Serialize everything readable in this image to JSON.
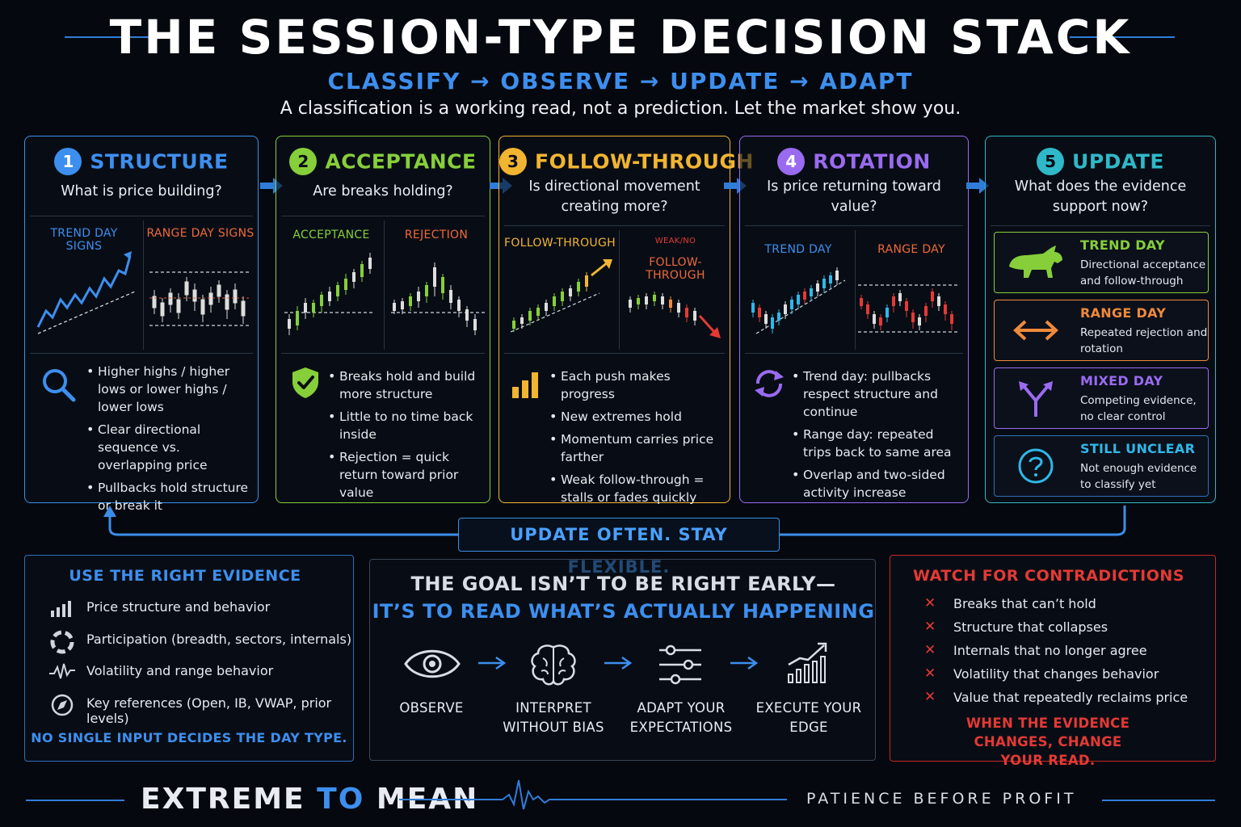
{
  "header": {
    "title": "THE SESSION-TYPE DECISION STACK",
    "subtitle": "CLASSIFY → OBSERVE → UPDATE → ADAPT",
    "tagline": "A classification is a working read, not a prediction. Let the market show you."
  },
  "colors": {
    "blue": "#3d8fef",
    "green": "#86cf3a",
    "yellow": "#f2b531",
    "purple": "#9a6bf0",
    "teal": "#2fb8c8",
    "orange": "#f08a3a",
    "red": "#e53935"
  },
  "steps": [
    {
      "num": "1",
      "title": "STRUCTURE",
      "question": "What is price building?",
      "left_label": "TREND DAY SIGNS",
      "right_label": "RANGE DAY SIGNS",
      "icon": "magnifier-icon",
      "bullets": [
        "Higher highs / higher lows or lower highs / lower lows",
        "Clear directional sequence vs. overlapping price",
        "Pullbacks hold structure or break it"
      ]
    },
    {
      "num": "2",
      "title": "ACCEPTANCE",
      "question": "Are breaks holding?",
      "left_label": "ACCEPTANCE",
      "right_label": "REJECTION",
      "icon": "shield-check-icon",
      "bullets": [
        "Breaks hold and build more structure",
        "Little to no time back inside",
        "Rejection = quick return toward prior value"
      ]
    },
    {
      "num": "3",
      "title": "FOLLOW-THROUGH",
      "question": "Is directional movement creating more?",
      "left_label": "FOLLOW-THROUGH",
      "right_label_top": "WEAK/NO",
      "right_label": "FOLLOW-THROUGH",
      "icon": "bar-chart-icon",
      "bullets": [
        "Each push makes progress",
        "New extremes hold",
        "Momentum carries price farther",
        "Weak follow-through = stalls or fades quickly"
      ]
    },
    {
      "num": "4",
      "title": "ROTATION",
      "question": "Is price returning toward value?",
      "left_label": "TREND DAY",
      "right_label": "RANGE DAY",
      "icon": "rotate-arrows-icon",
      "bullets": [
        "Trend day: pullbacks respect structure and continue",
        "Range day: repeated trips back to same area",
        "Overlap and two-sided activity increase"
      ]
    },
    {
      "num": "5",
      "title": "UPDATE",
      "question": "What does the evidence support now?",
      "outcomes": [
        {
          "title": "TREND DAY",
          "desc": "Directional acceptance and follow-through",
          "icon": "bull-icon",
          "color": "#86cf3a"
        },
        {
          "title": "RANGE DAY",
          "desc": "Repeated rejection and rotation",
          "icon": "double-arrow-icon",
          "color": "#f08a3a"
        },
        {
          "title": "MIXED DAY",
          "desc": "Competing evidence, no clear control",
          "icon": "split-arrow-icon",
          "color": "#9a6bf0"
        },
        {
          "title": "STILL UNCLEAR",
          "desc": "Not enough evidence to classify yet",
          "icon": "question-icon",
          "color": "#2fb8e8"
        }
      ]
    }
  ],
  "loop_label": "UPDATE OFTEN. STAY FLEXIBLE.",
  "evidence": {
    "title": "USE THE RIGHT EVIDENCE",
    "items": [
      {
        "text": "Price structure and behavior",
        "icon": "signal-bars-icon"
      },
      {
        "text": "Participation (breadth, sectors, internals)",
        "icon": "lifebuoy-icon"
      },
      {
        "text": "Volatility and range behavior",
        "icon": "pulse-icon"
      },
      {
        "text": "Key references (Open, IB, VWAP, prior levels)",
        "icon": "compass-icon"
      }
    ],
    "footer": "NO SINGLE INPUT DECIDES THE DAY TYPE."
  },
  "goal": {
    "line1": "THE GOAL ISN’T TO BE RIGHT EARLY—",
    "line2": "IT’S TO READ WHAT’S ACTUALLY HAPPENING",
    "steps": [
      {
        "label": "OBSERVE",
        "icon": "eye-icon"
      },
      {
        "label": "INTERPRET WITHOUT BIAS",
        "icon": "brain-icon"
      },
      {
        "label": "ADAPT YOUR EXPECTATIONS",
        "icon": "sliders-icon"
      },
      {
        "label": "EXECUTE YOUR EDGE",
        "icon": "growth-chart-icon"
      }
    ]
  },
  "contradictions": {
    "title": "WATCH FOR CONTRADICTIONS",
    "items": [
      "Breaks that can’t hold",
      "Structure that collapses",
      "Internals that no longer agree",
      "Volatility that changes behavior",
      "Value that repeatedly reclaims price"
    ],
    "footer": "WHEN THE EVIDENCE CHANGES, CHANGE YOUR READ."
  },
  "footer": {
    "brand_a": "EXTREME ",
    "brand_b": "TO",
    "brand_c": " MEAN",
    "motto": "PATIENCE BEFORE PROFIT"
  }
}
